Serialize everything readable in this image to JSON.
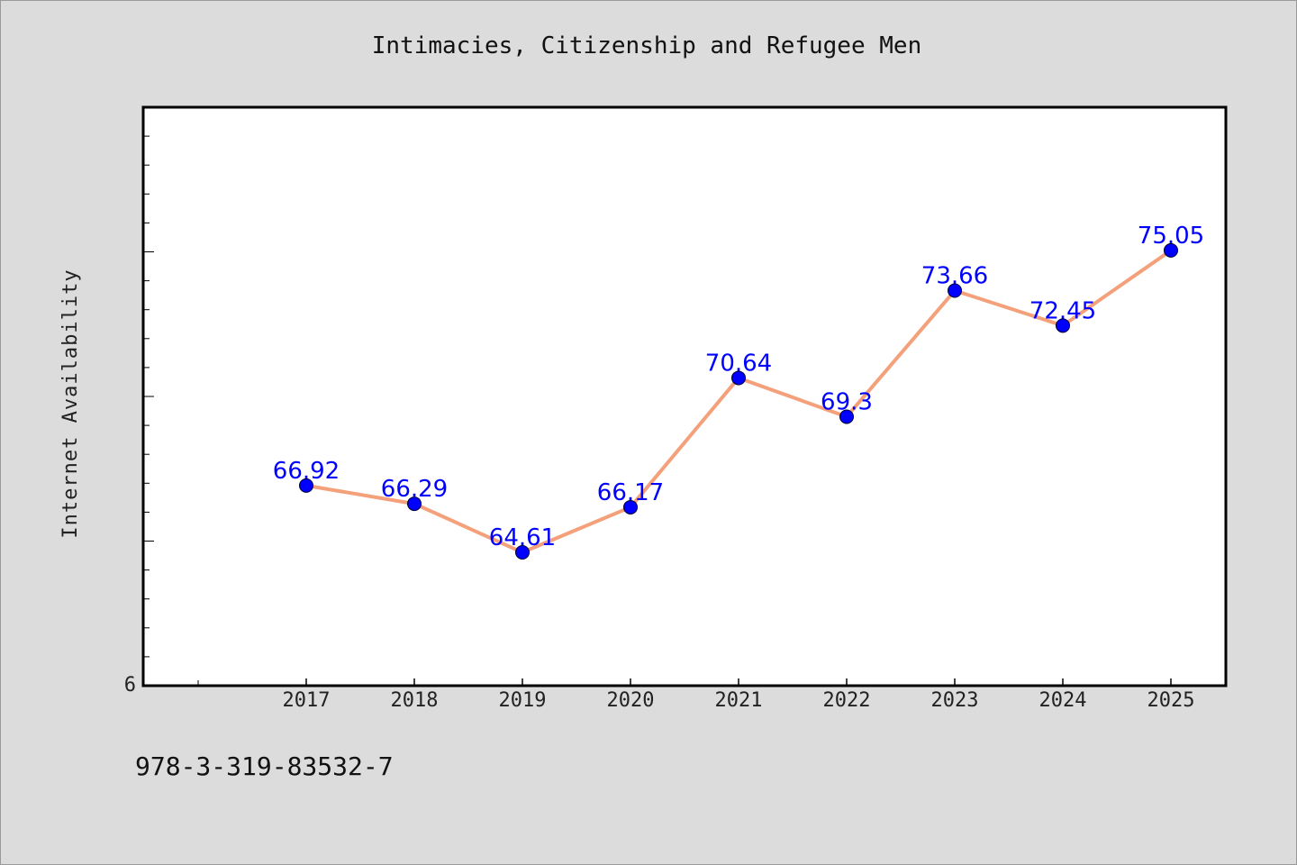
{
  "chart_data": {
    "type": "line",
    "title": "Intimacies, Citizenship and Refugee Men",
    "xlabel": "",
    "ylabel": "Internet Availability",
    "categories": [
      "2017",
      "2018",
      "2019",
      "2020",
      "2021",
      "2022",
      "2023",
      "2024",
      "2025"
    ],
    "series": [
      {
        "values": [
          66.92,
          66.29,
          64.61,
          66.17,
          70.64,
          69.3,
          73.66,
          72.45,
          75.05
        ],
        "labels": [
          "66.92",
          "66.29",
          "64.61",
          "66.17",
          "70.64",
          "69.3",
          "73.66",
          "72.45",
          "75.05"
        ],
        "color": "#f4a07a",
        "marker_color": "#0000ff"
      }
    ],
    "ylim": [
      60,
      80
    ],
    "yticks_shown": [
      "6"
    ],
    "grid": false,
    "legend": "none"
  },
  "footer": {
    "isbn": "978-3-319-83532-7"
  }
}
